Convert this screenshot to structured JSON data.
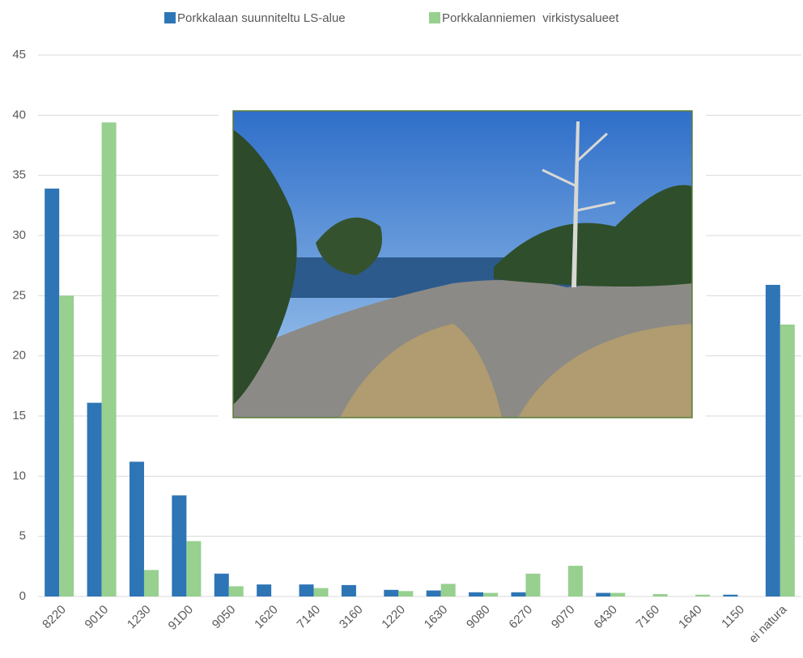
{
  "chart_data": {
    "type": "bar",
    "categories": [
      "8220",
      "9010",
      "1230",
      "91D0",
      "9050",
      "1620",
      "7140",
      "3160",
      "1220",
      "1630",
      "9080",
      "6270",
      "9070",
      "6430",
      "7160",
      "1640",
      "1150",
      "ei natura"
    ],
    "series": [
      {
        "name": "Porkkalaan suunniteltu LS-alue",
        "color": "#2e75b6",
        "values": [
          33.9,
          16.1,
          11.2,
          8.4,
          1.9,
          1.0,
          1.0,
          0.95,
          0.55,
          0.5,
          0.35,
          0.35,
          0,
          0.3,
          0,
          0,
          0.15,
          25.9
        ]
      },
      {
        "name": "Porkkalanniemen  virkistysalueet",
        "color": "#97d08f",
        "values": [
          25,
          39.4,
          2.2,
          4.6,
          0.85,
          0,
          0.7,
          0,
          0.45,
          1.05,
          0.3,
          1.9,
          2.55,
          0.3,
          0.2,
          0.15,
          0,
          22.6
        ]
      }
    ],
    "ylim": [
      0,
      45
    ],
    "yticks": [
      0,
      5,
      10,
      15,
      20,
      25,
      30,
      35,
      40,
      45
    ],
    "grid": true,
    "legend": "top"
  }
}
